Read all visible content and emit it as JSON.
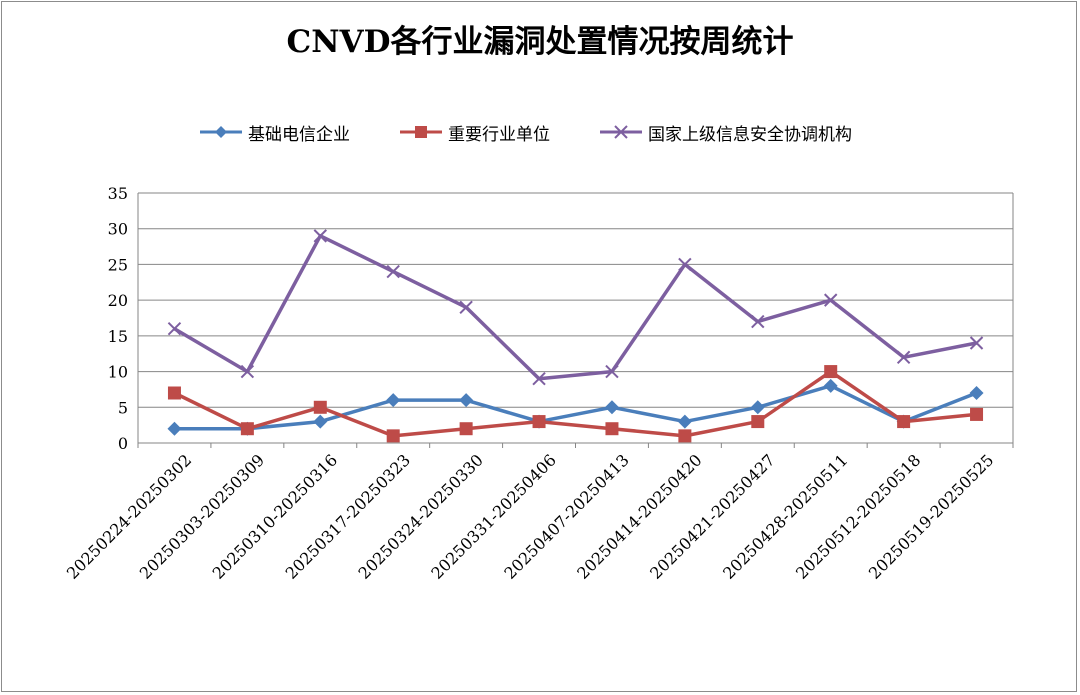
{
  "chart_data": {
    "type": "line",
    "title": "CNVD各行业漏洞处置情况按周统计",
    "xlabel": "",
    "ylabel": "",
    "categories": [
      "20250224-20250302",
      "20250303-20250309",
      "20250310-20250316",
      "20250317-20250323",
      "20250324-20250330",
      "20250331-20250406",
      "20250407-20250413",
      "20250414-20250420",
      "20250421-20250427",
      "20250428-20250511",
      "20250512-20250518",
      "20250519-20250525"
    ],
    "ylim": [
      0,
      35
    ],
    "yticks": [
      "0",
      "5",
      "10",
      "15",
      "20",
      "25",
      "30",
      "35"
    ],
    "grid": true,
    "legend_position": "top",
    "series": [
      {
        "name": "基础电信企业",
        "color": "#4a7ebb",
        "marker": "diamond",
        "values": [
          2,
          2,
          3,
          6,
          6,
          3,
          5,
          3,
          5,
          8,
          3,
          7
        ]
      },
      {
        "name": "重要行业单位",
        "color": "#be4b48",
        "marker": "square",
        "values": [
          7,
          2,
          5,
          1,
          2,
          3,
          2,
          1,
          3,
          10,
          3,
          4
        ]
      },
      {
        "name": "国家上级信息安全协调机构",
        "color": "#7d5fa0",
        "marker": "x",
        "values": [
          16,
          10,
          29,
          24,
          19,
          9,
          10,
          25,
          17,
          20,
          12,
          14
        ]
      }
    ]
  }
}
